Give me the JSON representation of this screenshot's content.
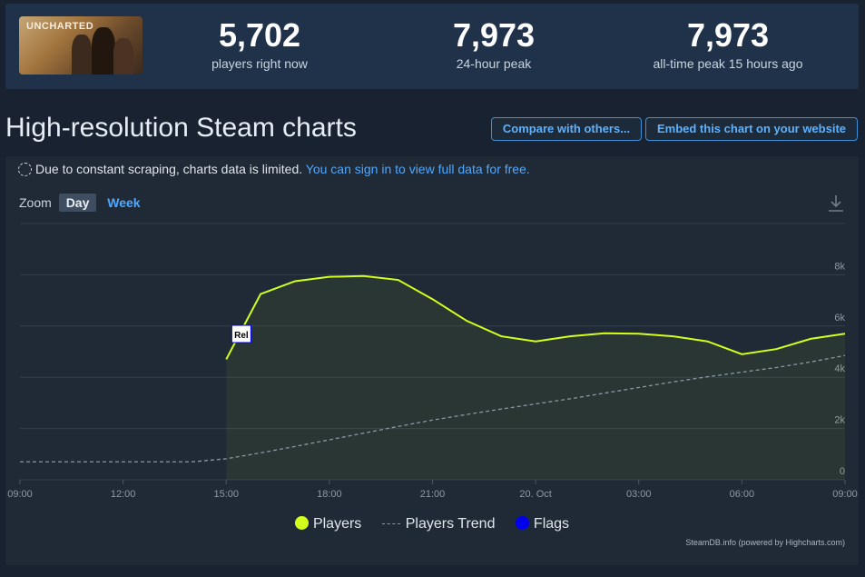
{
  "game": {
    "logo_text": "UNCHARTED"
  },
  "stats": [
    {
      "value": "5,702",
      "label": "players right now"
    },
    {
      "value": "7,973",
      "label": "24-hour peak"
    },
    {
      "value": "7,973",
      "label": "all-time peak 15 hours ago"
    }
  ],
  "page": {
    "title": "High-resolution Steam charts",
    "compare_label": "Compare with others...",
    "embed_label": "Embed this chart on your website"
  },
  "notice": {
    "text": "Due to constant scraping, charts data is limited.",
    "link": "You can sign in to view full data for free."
  },
  "zoom": {
    "label": "Zoom",
    "day": "Day",
    "week": "Week"
  },
  "legend": {
    "players": "Players",
    "trend": "Players Trend",
    "flags": "Flags"
  },
  "credits": "SteamDB.info (powered by Highcharts.com)",
  "colors": {
    "players": "#d3ff1c",
    "trend": "#8a97a4",
    "flags": "#0000ee",
    "accent": "#4fa8ff"
  },
  "chart_data": {
    "type": "line",
    "x_ticks": [
      "09:00",
      "12:00",
      "15:00",
      "18:00",
      "21:00",
      "20. Oct",
      "03:00",
      "06:00",
      "09:00"
    ],
    "y_ticks": [
      "0",
      "2k",
      "4k",
      "6k",
      "8k"
    ],
    "ylim": [
      0,
      10000
    ],
    "xlim_hours": [
      0,
      24
    ],
    "flag": {
      "label": "Rel",
      "x_hour": 6.4
    },
    "series": [
      {
        "name": "Players",
        "x_hours": [
          6,
          7,
          8,
          9,
          10,
          11,
          12,
          13,
          14,
          15,
          16,
          17,
          18,
          19,
          20,
          21,
          22,
          23,
          24
        ],
        "values": [
          4700,
          7250,
          7750,
          7920,
          7950,
          7800,
          7050,
          6200,
          5600,
          5400,
          5600,
          5720,
          5700,
          5600,
          5400,
          4900,
          5100,
          5500,
          5700
        ]
      },
      {
        "name": "Players Trend",
        "x_hours": [
          0,
          5,
          6,
          7,
          8,
          9,
          10,
          11,
          12,
          13,
          14,
          15,
          16,
          17,
          18,
          19,
          20,
          21,
          22,
          23,
          24
        ],
        "values": [
          700,
          700,
          820,
          1050,
          1300,
          1560,
          1820,
          2080,
          2330,
          2550,
          2760,
          2960,
          3160,
          3380,
          3600,
          3820,
          4020,
          4200,
          4380,
          4600,
          4850
        ]
      }
    ]
  }
}
